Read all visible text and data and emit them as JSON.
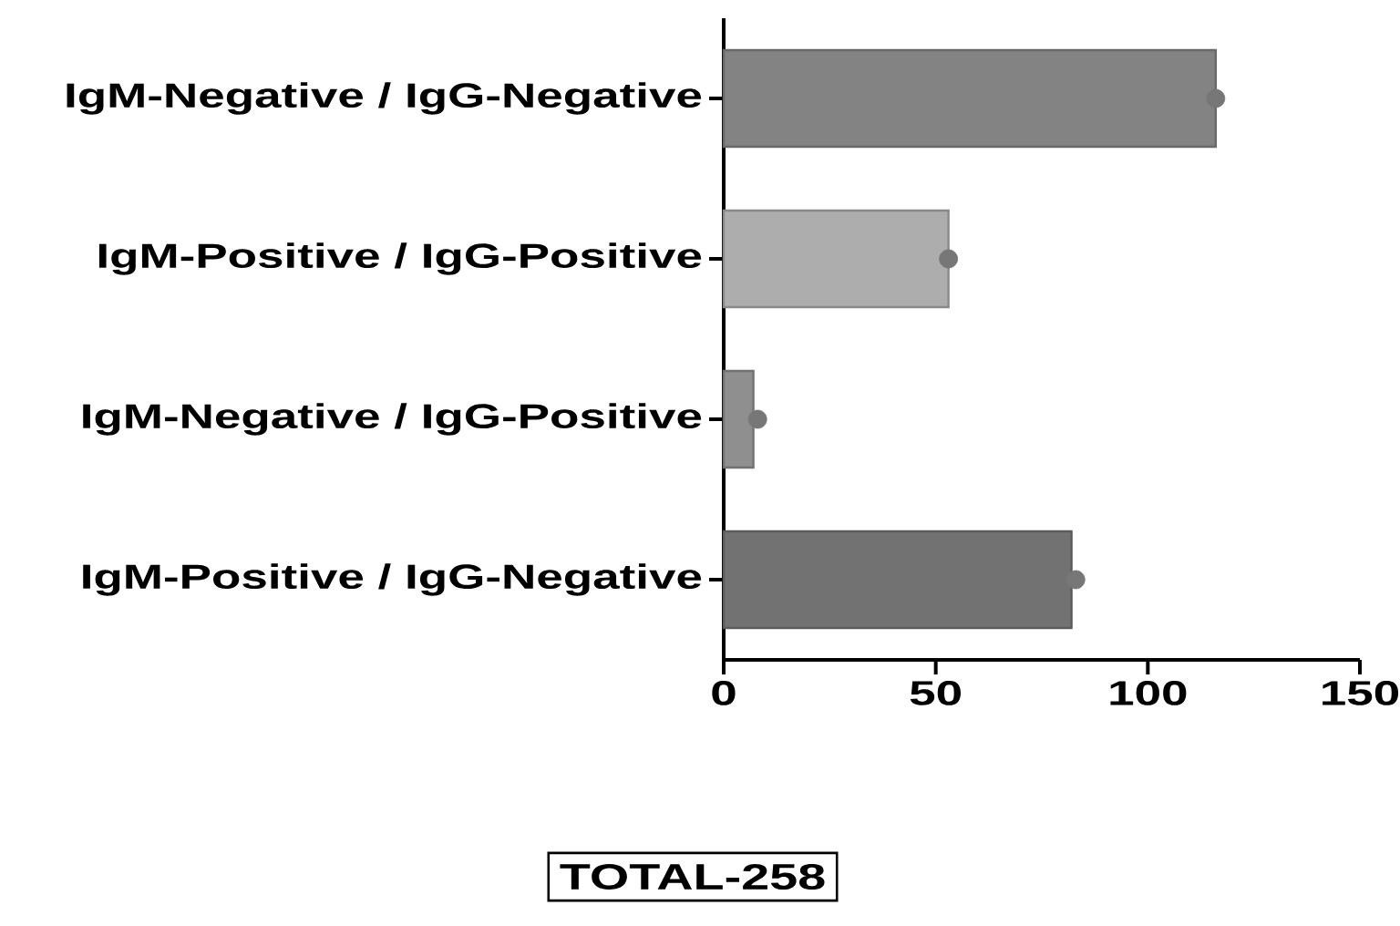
{
  "chart_data": {
    "type": "bar",
    "orientation": "horizontal",
    "categories": [
      "IgM-Negative / IgG-Negative",
      "IgM-Positive / IgG-Positive",
      "IgM-Negative / IgG-Positive",
      "IgM-Positive / IgG-Negative"
    ],
    "series": [
      {
        "values": [
          116,
          53,
          7,
          82
        ],
        "colors": [
          "#838383",
          "#adadad",
          "#8f8f8f",
          "#727272"
        ]
      },
      {
        "type": "scatter",
        "x": [
          "IgM-Negative / IgG-Negative",
          "IgM-Positive / IgG-Positive",
          "IgM-Negative / IgG-Positive",
          "IgM-Positive / IgG-Negative"
        ],
        "values": [
          116,
          53,
          8,
          83
        ],
        "color": "#777777",
        "marker": "circle"
      }
    ],
    "xlim": [
      0,
      150
    ],
    "xticks": [
      0,
      50,
      100,
      150
    ],
    "annotations": [
      "TOTAL-258"
    ]
  }
}
